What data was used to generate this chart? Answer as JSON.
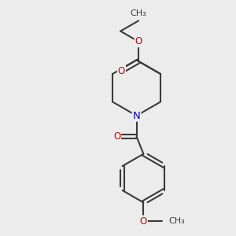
{
  "bg_color": "#ececec",
  "bond_color": "#3a3a3a",
  "bond_width": 1.5,
  "N_color": "#0000cc",
  "O_color": "#cc0000",
  "font_size_atom": 8.5,
  "fig_size": [
    3.0,
    3.0
  ],
  "dpi": 100,
  "xlim": [
    0,
    10
  ],
  "ylim": [
    0,
    10
  ]
}
